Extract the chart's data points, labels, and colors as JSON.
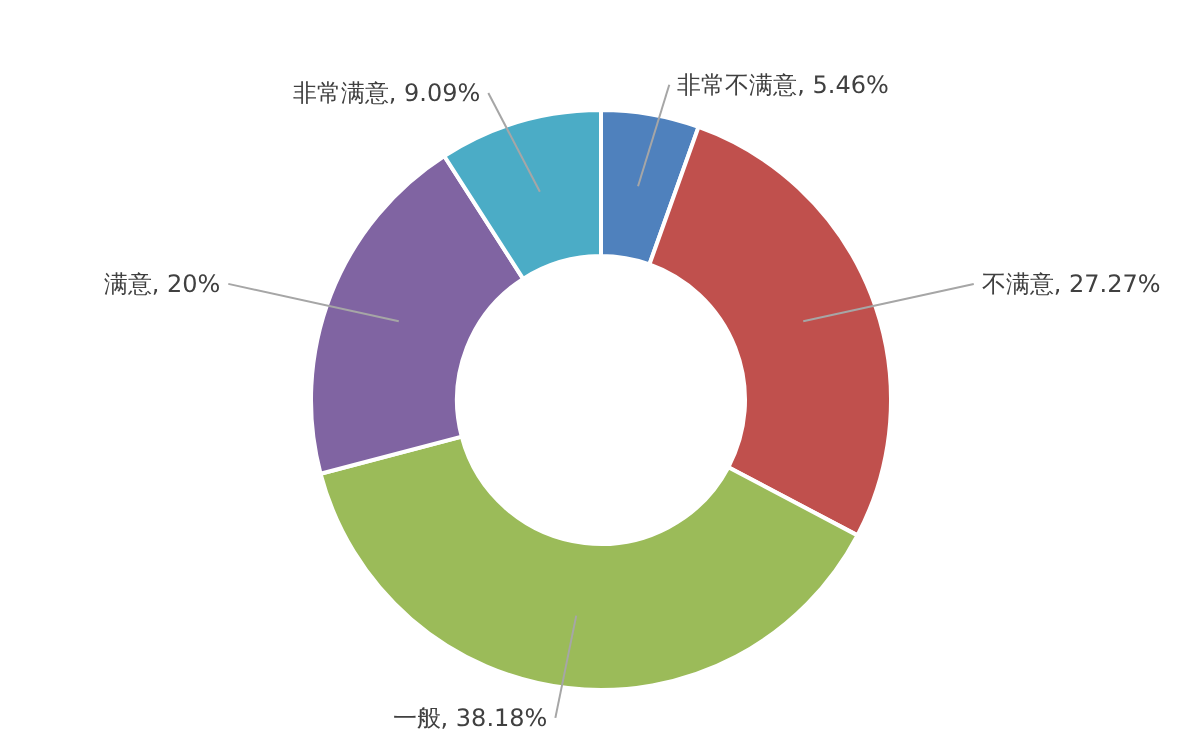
{
  "chart_data": {
    "type": "donut",
    "categories": [
      "非常不满意",
      "不满意",
      "一般",
      "满意",
      "非常满意"
    ],
    "values": [
      5.46,
      27.27,
      38.18,
      20,
      9.09
    ],
    "colors": [
      "#4f81bd",
      "#c0504d",
      "#9bbb59",
      "#8064a2",
      "#4bacc6"
    ],
    "value_labels": [
      "5.46%",
      "27.27%",
      "38.18%",
      "20%",
      "9.09%"
    ]
  }
}
